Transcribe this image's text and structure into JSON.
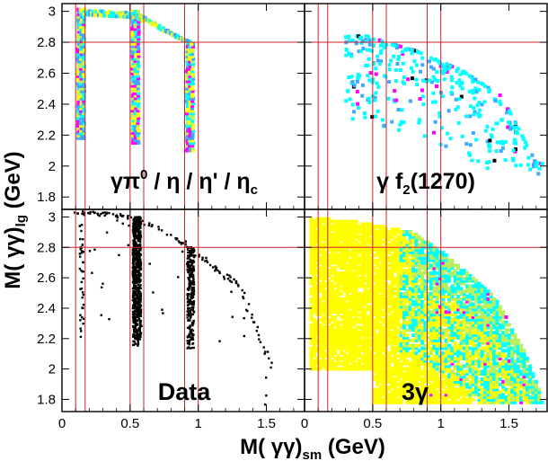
{
  "chart_data": {
    "type": "scatter",
    "layout": "2x2 grid, shared axes",
    "xlabel": "M( γγ)sm (GeV)",
    "xlabel_parts": {
      "main": "M( γγ)",
      "sub": "sm",
      "unit": " (GeV)"
    },
    "ylabel": "M( γγ)lg (GeV)",
    "ylabel_parts": {
      "main": "M( γγ)",
      "sub": "lg",
      "unit": " (GeV)"
    },
    "xlim": [
      0,
      1.78
    ],
    "ylim": [
      1.72,
      3.05
    ],
    "x_ticks": [
      "0",
      "0.5",
      "1",
      "1.5"
    ],
    "x_tick_values": [
      0,
      0.5,
      1,
      1.5
    ],
    "y_ticks": [
      "3",
      "2.8",
      "2.6",
      "2.4",
      "2.2",
      "2",
      "1.8"
    ],
    "y_tick_values": [
      3,
      2.8,
      2.6,
      2.4,
      2.2,
      2,
      1.8
    ],
    "cut_lines": {
      "x": [
        0.1,
        0.17,
        0.5,
        0.6,
        0.9,
        1.0
      ],
      "y": [
        2.8
      ],
      "color": "#d0202a"
    },
    "grid": false,
    "colors": {
      "density_scale": [
        "#ffff00",
        "#b8f060",
        "#00ffff",
        "#40a8ff",
        "#ff00ff",
        "#000000"
      ],
      "data_points": "#000000"
    },
    "panels": [
      {
        "id": "top-left",
        "label": "γπ0 / η / η' / ηc",
        "label_parts": [
          "γ",
          "π",
          "0",
          " / η / η' / η",
          "c"
        ],
        "style": "density",
        "bands": [
          {
            "x_min": 0.12,
            "x_max": 0.17,
            "y_min": 2.18,
            "y_max": 3.02
          },
          {
            "x_min": 0.52,
            "x_max": 0.57,
            "y_min": 2.15,
            "y_max": 3.0
          },
          {
            "x_min": 0.92,
            "x_max": 0.97,
            "y_min": 2.1,
            "y_max": 2.8
          }
        ],
        "ridge": [
          [
            0.15,
            3.0
          ],
          [
            0.55,
            2.98
          ],
          [
            0.75,
            2.88
          ],
          [
            0.95,
            2.79
          ]
        ]
      },
      {
        "id": "top-right",
        "label": "γ f2(1270)",
        "label_parts": [
          "γ f",
          "2",
          "(1270)"
        ],
        "style": "density",
        "region": {
          "edge": [
            [
              0.45,
              2.84
            ],
            [
              0.8,
              2.75
            ],
            [
              1.15,
              2.62
            ],
            [
              1.45,
              2.45
            ],
            [
              1.7,
              2.02
            ]
          ],
          "x_range": [
            0.3,
            1.75
          ]
        }
      },
      {
        "id": "bottom-left",
        "label": "Data",
        "style": "points",
        "bands": [
          {
            "x_min": 0.52,
            "x_max": 0.58,
            "y_min": 2.15,
            "y_max": 3.0,
            "n": 700
          },
          {
            "x_min": 0.92,
            "x_max": 0.97,
            "y_min": 2.13,
            "y_max": 2.8,
            "n": 260
          },
          {
            "x_min": 0.13,
            "x_max": 0.16,
            "y_min": 2.2,
            "y_max": 2.95,
            "n": 40
          }
        ],
        "ridge": [
          [
            0.1,
            3.03
          ],
          [
            0.3,
            3.02
          ],
          [
            0.5,
            3.0
          ],
          [
            0.7,
            2.93
          ],
          [
            0.9,
            2.83
          ],
          [
            1.1,
            2.68
          ],
          [
            1.3,
            2.55
          ],
          [
            1.55,
            2.0
          ]
        ]
      },
      {
        "id": "bottom-right",
        "label": "3γ",
        "label_parts": [
          "3γ"
        ],
        "style": "density",
        "region": {
          "edge": [
            [
              0.05,
              3.0
            ],
            [
              0.4,
              2.97
            ],
            [
              0.8,
              2.9
            ],
            [
              1.1,
              2.72
            ],
            [
              1.4,
              2.47
            ],
            [
              1.6,
              2.15
            ],
            [
              1.75,
              1.8
            ]
          ],
          "x_range": [
            0.05,
            1.75
          ]
        }
      }
    ]
  }
}
